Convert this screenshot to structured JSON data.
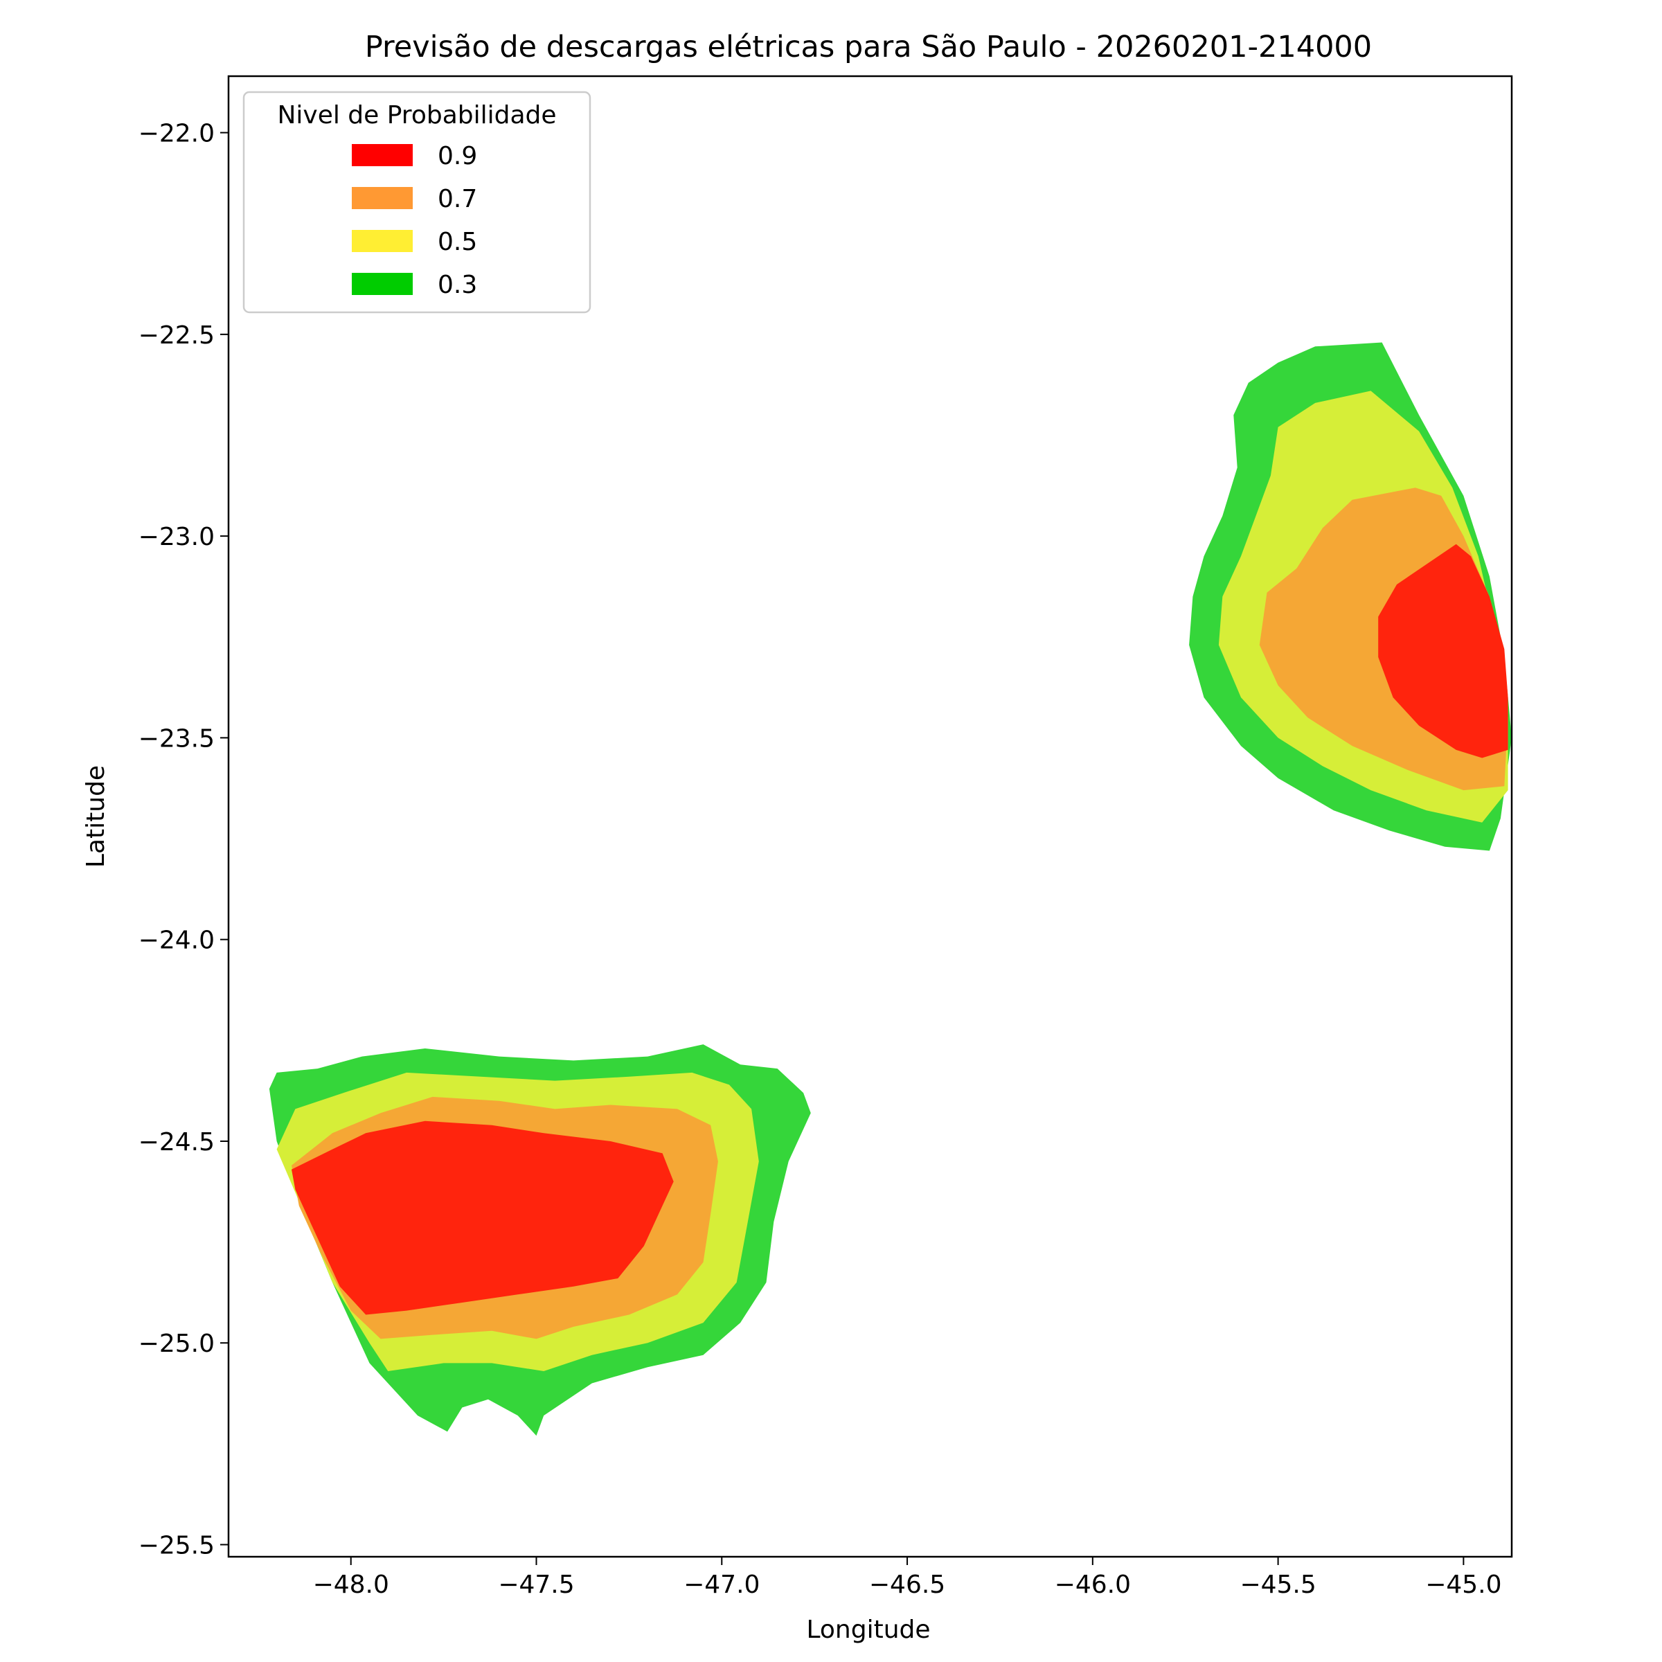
{
  "chart_data": {
    "type": "contour-map",
    "title": "Previsão de descargas elétricas para São Paulo - 20260201-214000",
    "xlabel": "Longitude",
    "ylabel": "Latitude",
    "xlim": [
      -48.33,
      -44.87
    ],
    "ylim": [
      -25.53,
      -21.86
    ],
    "xticks": [
      -48.0,
      -47.5,
      -47.0,
      -46.5,
      -46.0,
      -45.5,
      -45.0
    ],
    "xtick_labels": [
      "−48.0",
      "−47.5",
      "−47.0",
      "−46.5",
      "−46.0",
      "−45.5",
      "−45.0"
    ],
    "yticks": [
      -22.0,
      -22.5,
      -23.0,
      -23.5,
      -24.0,
      -24.5,
      -25.0,
      -25.5
    ],
    "ytick_labels": [
      "−22.0",
      "−22.5",
      "−23.0",
      "−23.5",
      "−24.0",
      "−24.5",
      "−25.0",
      "−25.5"
    ],
    "grid": false,
    "legend": {
      "title": "Nivel de Probabilidade",
      "position": "upper-left",
      "entries": [
        {
          "label": "0.9",
          "color": "#ff0000"
        },
        {
          "label": "0.7",
          "color": "#ff9933"
        },
        {
          "label": "0.5",
          "color": "#ffee33"
        },
        {
          "label": "0.3",
          "color": "#00cc00"
        }
      ]
    },
    "level_fill_colors": {
      "0.3": "#35d63a",
      "0.5": "#d6ee38",
      "0.7": "#f5a735",
      "0.9": "#ff240d"
    },
    "regions": [
      {
        "name": "southwest-cell",
        "levels": [
          {
            "level": "0.3",
            "polygon": [
              [
                -48.22,
                -24.37
              ],
              [
                -48.2,
                -24.33
              ],
              [
                -48.09,
                -24.32
              ],
              [
                -47.97,
                -24.29
              ],
              [
                -47.8,
                -24.27
              ],
              [
                -47.6,
                -24.29
              ],
              [
                -47.4,
                -24.3
              ],
              [
                -47.2,
                -24.29
              ],
              [
                -47.05,
                -24.26
              ],
              [
                -46.95,
                -24.31
              ],
              [
                -46.85,
                -24.32
              ],
              [
                -46.78,
                -24.38
              ],
              [
                -46.76,
                -24.43
              ],
              [
                -46.82,
                -24.55
              ],
              [
                -46.86,
                -24.7
              ],
              [
                -46.88,
                -24.85
              ],
              [
                -46.95,
                -24.95
              ],
              [
                -47.05,
                -25.03
              ],
              [
                -47.2,
                -25.06
              ],
              [
                -47.35,
                -25.1
              ],
              [
                -47.48,
                -25.18
              ],
              [
                -47.5,
                -25.23
              ],
              [
                -47.55,
                -25.18
              ],
              [
                -47.63,
                -25.14
              ],
              [
                -47.7,
                -25.16
              ],
              [
                -47.74,
                -25.22
              ],
              [
                -47.82,
                -25.18
              ],
              [
                -47.95,
                -25.05
              ],
              [
                -48.05,
                -24.85
              ],
              [
                -48.14,
                -24.65
              ],
              [
                -48.2,
                -24.5
              ]
            ]
          },
          {
            "level": "0.5",
            "polygon": [
              [
                -48.2,
                -24.52
              ],
              [
                -48.15,
                -24.42
              ],
              [
                -48.02,
                -24.38
              ],
              [
                -47.85,
                -24.33
              ],
              [
                -47.65,
                -24.34
              ],
              [
                -47.45,
                -24.35
              ],
              [
                -47.25,
                -24.34
              ],
              [
                -47.08,
                -24.33
              ],
              [
                -46.98,
                -24.36
              ],
              [
                -46.92,
                -24.42
              ],
              [
                -46.9,
                -24.55
              ],
              [
                -46.93,
                -24.7
              ],
              [
                -46.96,
                -24.85
              ],
              [
                -47.05,
                -24.95
              ],
              [
                -47.2,
                -25.0
              ],
              [
                -47.35,
                -25.03
              ],
              [
                -47.48,
                -25.07
              ],
              [
                -47.62,
                -25.05
              ],
              [
                -47.75,
                -25.05
              ],
              [
                -47.9,
                -25.07
              ],
              [
                -47.95,
                -25.0
              ],
              [
                -48.05,
                -24.85
              ],
              [
                -48.13,
                -24.67
              ]
            ]
          },
          {
            "level": "0.7",
            "polygon": [
              [
                -48.16,
                -24.56
              ],
              [
                -48.05,
                -24.48
              ],
              [
                -47.92,
                -24.43
              ],
              [
                -47.78,
                -24.39
              ],
              [
                -47.6,
                -24.4
              ],
              [
                -47.45,
                -24.42
              ],
              [
                -47.3,
                -24.41
              ],
              [
                -47.12,
                -24.42
              ],
              [
                -47.03,
                -24.46
              ],
              [
                -47.01,
                -24.55
              ],
              [
                -47.03,
                -24.68
              ],
              [
                -47.05,
                -24.8
              ],
              [
                -47.12,
                -24.88
              ],
              [
                -47.25,
                -24.93
              ],
              [
                -47.4,
                -24.96
              ],
              [
                -47.5,
                -24.99
              ],
              [
                -47.62,
                -24.97
              ],
              [
                -47.78,
                -24.98
              ],
              [
                -47.92,
                -24.99
              ],
              [
                -48.0,
                -24.92
              ],
              [
                -48.08,
                -24.78
              ],
              [
                -48.14,
                -24.66
              ]
            ]
          },
          {
            "level": "0.9",
            "polygon": [
              [
                -48.16,
                -24.57
              ],
              [
                -48.05,
                -24.52
              ],
              [
                -47.96,
                -24.48
              ],
              [
                -47.8,
                -24.45
              ],
              [
                -47.62,
                -24.46
              ],
              [
                -47.48,
                -24.48
              ],
              [
                -47.3,
                -24.5
              ],
              [
                -47.16,
                -24.53
              ],
              [
                -47.13,
                -24.6
              ],
              [
                -47.17,
                -24.68
              ],
              [
                -47.21,
                -24.76
              ],
              [
                -47.28,
                -24.84
              ],
              [
                -47.4,
                -24.86
              ],
              [
                -47.55,
                -24.88
              ],
              [
                -47.7,
                -24.9
              ],
              [
                -47.85,
                -24.92
              ],
              [
                -47.96,
                -24.93
              ],
              [
                -48.03,
                -24.86
              ],
              [
                -48.1,
                -24.72
              ],
              [
                -48.15,
                -24.62
              ]
            ]
          }
        ]
      },
      {
        "name": "northeast-cell",
        "levels": [
          {
            "level": "0.3",
            "polygon": [
              [
                -45.22,
                -22.52
              ],
              [
                -45.4,
                -22.53
              ],
              [
                -45.5,
                -22.57
              ],
              [
                -45.58,
                -22.62
              ],
              [
                -45.62,
                -22.7
              ],
              [
                -45.61,
                -22.83
              ],
              [
                -45.65,
                -22.95
              ],
              [
                -45.7,
                -23.05
              ],
              [
                -45.73,
                -23.15
              ],
              [
                -45.74,
                -23.27
              ],
              [
                -45.7,
                -23.4
              ],
              [
                -45.6,
                -23.52
              ],
              [
                -45.5,
                -23.6
              ],
              [
                -45.35,
                -23.68
              ],
              [
                -45.2,
                -23.73
              ],
              [
                -45.05,
                -23.77
              ],
              [
                -44.93,
                -23.78
              ],
              [
                -44.9,
                -23.7
              ],
              [
                -44.87,
                -23.5
              ],
              [
                -44.89,
                -23.3
              ],
              [
                -44.93,
                -23.1
              ],
              [
                -45.0,
                -22.9
              ],
              [
                -45.12,
                -22.7
              ]
            ]
          },
          {
            "level": "0.5",
            "polygon": [
              [
                -45.25,
                -22.64
              ],
              [
                -45.4,
                -22.67
              ],
              [
                -45.5,
                -22.73
              ],
              [
                -45.52,
                -22.85
              ],
              [
                -45.56,
                -22.95
              ],
              [
                -45.6,
                -23.05
              ],
              [
                -45.65,
                -23.15
              ],
              [
                -45.66,
                -23.27
              ],
              [
                -45.6,
                -23.4
              ],
              [
                -45.5,
                -23.5
              ],
              [
                -45.38,
                -23.57
              ],
              [
                -45.25,
                -23.63
              ],
              [
                -45.1,
                -23.68
              ],
              [
                -44.95,
                -23.71
              ],
              [
                -44.88,
                -23.63
              ],
              [
                -44.88,
                -23.45
              ],
              [
                -44.91,
                -23.25
              ],
              [
                -44.96,
                -23.05
              ],
              [
                -45.03,
                -22.88
              ],
              [
                -45.12,
                -22.74
              ]
            ]
          },
          {
            "level": "0.7",
            "polygon": [
              [
                -45.13,
                -22.88
              ],
              [
                -45.3,
                -22.91
              ],
              [
                -45.38,
                -22.98
              ],
              [
                -45.45,
                -23.08
              ],
              [
                -45.53,
                -23.14
              ],
              [
                -45.55,
                -23.27
              ],
              [
                -45.5,
                -23.37
              ],
              [
                -45.42,
                -23.45
              ],
              [
                -45.3,
                -23.52
              ],
              [
                -45.15,
                -23.58
              ],
              [
                -45.0,
                -23.63
              ],
              [
                -44.89,
                -23.62
              ],
              [
                -44.88,
                -23.45
              ],
              [
                -44.9,
                -23.3
              ],
              [
                -44.93,
                -23.15
              ],
              [
                -45.0,
                -23.0
              ],
              [
                -45.06,
                -22.9
              ]
            ]
          },
          {
            "level": "0.9",
            "polygon": [
              [
                -45.02,
                -23.02
              ],
              [
                -45.1,
                -23.07
              ],
              [
                -45.18,
                -23.12
              ],
              [
                -45.23,
                -23.2
              ],
              [
                -45.23,
                -23.3
              ],
              [
                -45.19,
                -23.4
              ],
              [
                -45.12,
                -23.47
              ],
              [
                -45.02,
                -23.53
              ],
              [
                -44.95,
                -23.55
              ],
              [
                -44.88,
                -23.53
              ],
              [
                -44.88,
                -23.4
              ],
              [
                -44.89,
                -23.28
              ],
              [
                -44.93,
                -23.15
              ],
              [
                -44.98,
                -23.05
              ]
            ]
          }
        ]
      }
    ]
  }
}
